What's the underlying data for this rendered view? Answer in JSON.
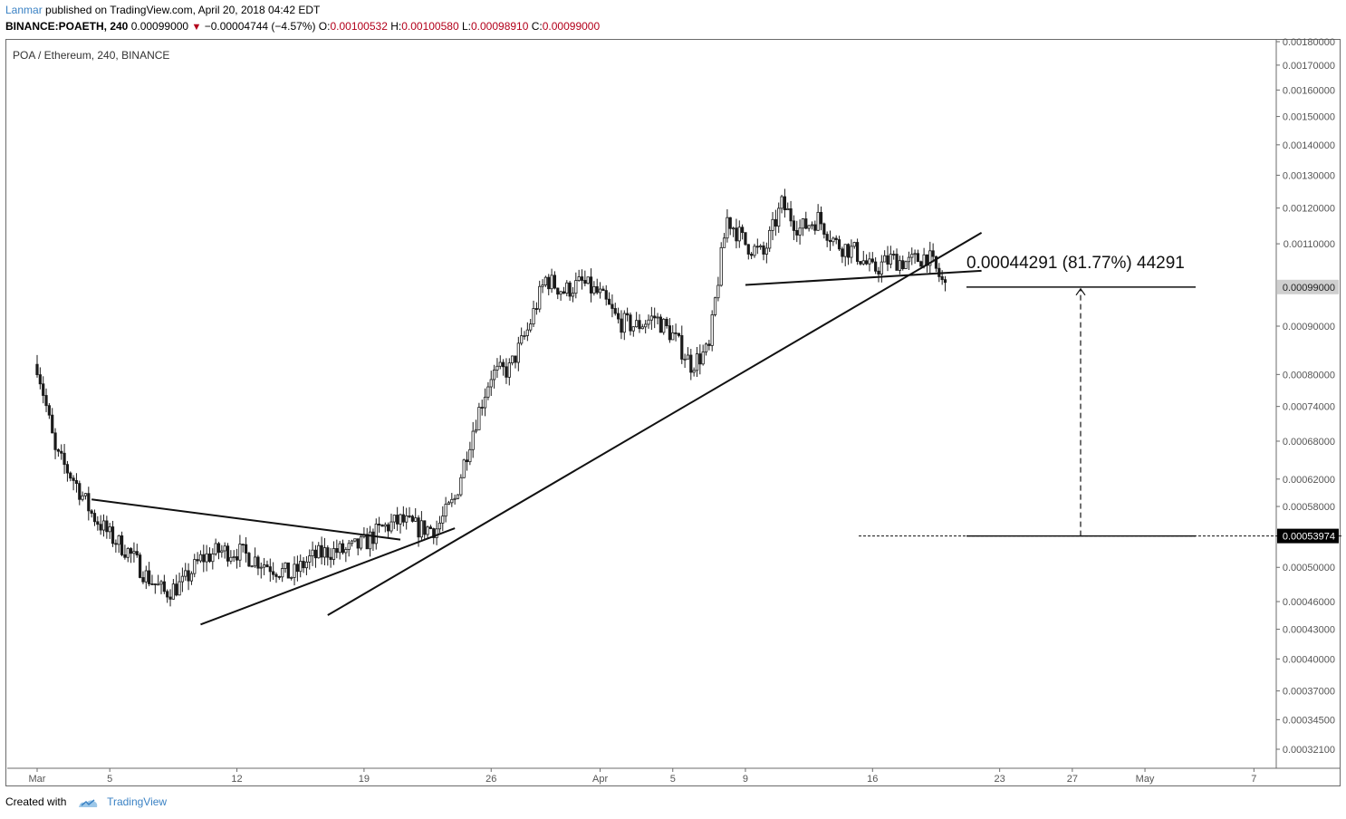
{
  "header": {
    "author": "Lanmar",
    "published_text": "published on TradingView.com, April 20, 2018 04:42 EDT",
    "symbol_line": "BINANCE:POAETH, 240",
    "last": "0.00099000",
    "change": "−0.00004744 (−4.57%)",
    "o_label": "O:",
    "o_value": "0.00100532",
    "h_label": "H:",
    "h_value": "0.00100580",
    "l_label": "L:",
    "l_value": "0.00098910",
    "c_label": "C:",
    "c_value": "0.00099000"
  },
  "footer": {
    "created_with": "Created with",
    "brand": "TradingView"
  },
  "chart_data": {
    "type": "candlestick",
    "title": "POA / Ethereum, 240, BINANCE",
    "price_axis_scale": "log",
    "price_axis_ticks": [
      "0.00180000",
      "0.00170000",
      "0.00160000",
      "0.00150000",
      "0.00140000",
      "0.00130000",
      "0.00120000",
      "0.00110000",
      "0.00090000",
      "0.00080000",
      "0.00074000",
      "0.00068000",
      "0.00062000",
      "0.00058000",
      "0.00050000",
      "0.00046000",
      "0.00043000",
      "0.00040000",
      "0.00037000",
      "0.00034500",
      "0.00032100"
    ],
    "price_tick_values": [
      0.0018,
      0.0017,
      0.0016,
      0.0015,
      0.0014,
      0.0013,
      0.0012,
      0.0011,
      0.0009,
      0.0008,
      0.00074,
      0.00068,
      0.00062,
      0.00058,
      0.0005,
      0.00046,
      0.00043,
      0.0004,
      0.00037,
      0.000345,
      0.000321
    ],
    "time_axis_labels": [
      "Mar",
      "5",
      "12",
      "19",
      "26",
      "Apr",
      "5",
      "9",
      "16",
      "23",
      "27",
      "May",
      "7"
    ],
    "time_axis_day_offsets": [
      0,
      4,
      11,
      18,
      25,
      31,
      35,
      39,
      46,
      53,
      57,
      61,
      67
    ],
    "time_axis_origin": "2018-03-01",
    "last_price_label": "0.00099000",
    "target_price_label": "0.00053974",
    "measure_label": "0.00044291 (81.77%) 44291",
    "closes_approx": [
      [
        "2018-03-01",
        0.00082
      ],
      [
        "2018-03-02",
        0.00066
      ],
      [
        "2018-03-03",
        0.00062
      ],
      [
        "2018-03-04",
        0.00057
      ],
      [
        "2018-03-05",
        0.00054
      ],
      [
        "2018-03-06",
        0.00052
      ],
      [
        "2018-03-07",
        0.00049
      ],
      [
        "2018-03-08",
        0.00047
      ],
      [
        "2018-03-09",
        0.00048
      ],
      [
        "2018-03-10",
        0.00051
      ],
      [
        "2018-03-11",
        0.00052
      ],
      [
        "2018-03-12",
        0.00052
      ],
      [
        "2018-03-13",
        0.00051
      ],
      [
        "2018-03-14",
        0.0005
      ],
      [
        "2018-03-15",
        0.00049
      ],
      [
        "2018-03-16",
        0.00051
      ],
      [
        "2018-03-17",
        0.00052
      ],
      [
        "2018-03-18",
        0.00052
      ],
      [
        "2018-03-19",
        0.00053
      ],
      [
        "2018-03-20",
        0.00055
      ],
      [
        "2018-03-21",
        0.00056
      ],
      [
        "2018-03-22",
        0.00055
      ],
      [
        "2018-03-23",
        0.00055
      ],
      [
        "2018-03-24",
        0.00059
      ],
      [
        "2018-03-25",
        0.0007
      ],
      [
        "2018-03-26",
        0.0008
      ],
      [
        "2018-03-27",
        0.00081
      ],
      [
        "2018-03-28",
        0.00089
      ],
      [
        "2018-03-29",
        0.00101
      ],
      [
        "2018-03-30",
        0.00098
      ],
      [
        "2018-03-31",
        0.001
      ],
      [
        "2018-04-01",
        0.00097
      ],
      [
        "2018-04-02",
        0.00091
      ],
      [
        "2018-04-03",
        0.0009
      ],
      [
        "2018-04-04",
        0.00092
      ],
      [
        "2018-04-05",
        0.00088
      ],
      [
        "2018-04-06",
        0.00082
      ],
      [
        "2018-04-07",
        0.00085
      ],
      [
        "2018-04-08",
        0.00117
      ],
      [
        "2018-04-09",
        0.0011
      ],
      [
        "2018-04-10",
        0.00107
      ],
      [
        "2018-04-11",
        0.00121
      ],
      [
        "2018-04-12",
        0.00114
      ],
      [
        "2018-04-13",
        0.00117
      ],
      [
        "2018-04-14",
        0.0011
      ],
      [
        "2018-04-15",
        0.00108
      ],
      [
        "2018-04-16",
        0.00103
      ],
      [
        "2018-04-17",
        0.00106
      ],
      [
        "2018-04-18",
        0.00105
      ],
      [
        "2018-04-19",
        0.00107
      ],
      [
        "2018-04-20",
        0.00099
      ]
    ],
    "trendlines": [
      {
        "name": "descending-resistance",
        "from": [
          "2018-03-04",
          0.00059
        ],
        "to": [
          "2018-03-21",
          0.000535
        ]
      },
      {
        "name": "ascending-support-short",
        "from": [
          "2018-03-10",
          0.000435
        ],
        "to": [
          "2018-03-24",
          0.00055
        ]
      },
      {
        "name": "ascending-support-long",
        "from": [
          "2018-03-17",
          0.000445
        ],
        "to": [
          "2018-04-22",
          0.00113
        ]
      },
      {
        "name": "neckline",
        "from": [
          "2018-04-09",
          0.000995
        ],
        "to": [
          "2018-04-22",
          0.00103
        ]
      }
    ]
  },
  "colors": {
    "author": "#3b82c4",
    "down": "#b3001b",
    "border": "#6b6b6b",
    "axis_text": "#555555",
    "candle": "#1a1a1a"
  }
}
